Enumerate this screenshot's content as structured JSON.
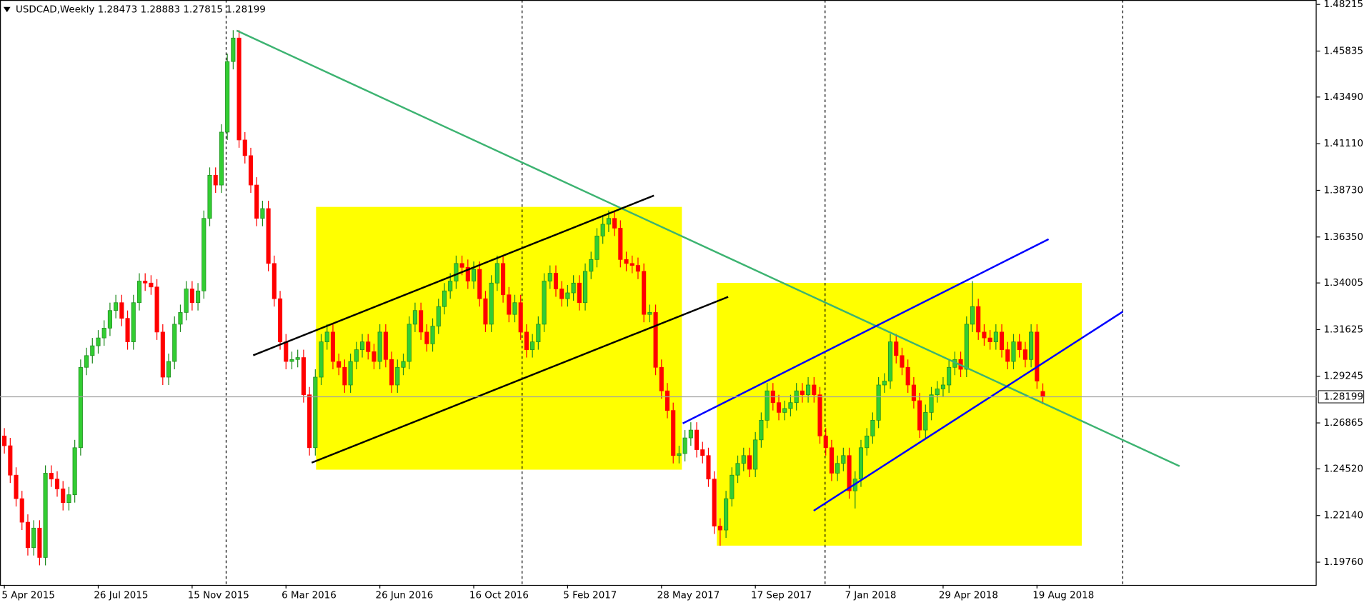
{
  "chart_data": {
    "type": "candlestick",
    "title": "USDCAD,Weekly",
    "up_color": "#32cd32",
    "down_color": "#ff0000",
    "grid": false,
    "ylim": [
      1.186,
      1.4844
    ],
    "yticks": [
      1.48215,
      1.45835,
      {
        "value": 1.4349,
        "label": "1.43490"
      },
      {
        "value": 1.4111,
        "label": "1.41110"
      },
      {
        "value": 1.3873,
        "label": "1.38730"
      },
      {
        "value": 1.3635,
        "label": "1.36350"
      },
      1.34005,
      1.31625,
      1.29245,
      1.26865,
      {
        "value": 1.2452,
        "label": "1.24520"
      },
      {
        "value": 1.2214,
        "label": "1.22140"
      },
      {
        "value": 1.1976,
        "label": "1.19760"
      }
    ],
    "categories": [
      "5 Apr 2015",
      null,
      null,
      null,
      null,
      null,
      null,
      null,
      null,
      null,
      null,
      null,
      null,
      null,
      null,
      null,
      "26 Jul 2015",
      null,
      null,
      null,
      null,
      null,
      null,
      null,
      null,
      null,
      null,
      null,
      null,
      null,
      null,
      null,
      "15 Nov 2015",
      null,
      null,
      null,
      null,
      null,
      null,
      null,
      null,
      null,
      null,
      null,
      null,
      null,
      null,
      null,
      "6 Mar 2016",
      null,
      null,
      null,
      null,
      null,
      null,
      null,
      null,
      null,
      null,
      null,
      null,
      null,
      null,
      null,
      "26 Jun 2016",
      null,
      null,
      null,
      null,
      null,
      null,
      null,
      null,
      null,
      null,
      null,
      null,
      null,
      null,
      null,
      "16 Oct 2016",
      null,
      null,
      null,
      null,
      null,
      null,
      null,
      null,
      null,
      null,
      null,
      null,
      null,
      null,
      null,
      "5 Feb 2017",
      null,
      null,
      null,
      null,
      null,
      null,
      null,
      null,
      null,
      null,
      null,
      null,
      null,
      null,
      null,
      "28 May 2017",
      null,
      null,
      null,
      null,
      null,
      null,
      null,
      null,
      null,
      null,
      null,
      null,
      null,
      null,
      null,
      "17 Sep 2017",
      null,
      null,
      null,
      null,
      null,
      null,
      null,
      null,
      null,
      null,
      null,
      null,
      null,
      null,
      null,
      "7 Jan 2018",
      null,
      null,
      null,
      null,
      null,
      null,
      null,
      null,
      null,
      null,
      null,
      null,
      null,
      null,
      null,
      "29 Apr 2018",
      null,
      null,
      null,
      null,
      null,
      null,
      null,
      null,
      null,
      null,
      null,
      null,
      null,
      null,
      null,
      "19 Aug 2018",
      null
    ],
    "ohlc": [
      [
        1.262,
        1.266,
        1.253,
        1.257
      ],
      [
        1.257,
        1.261,
        1.238,
        1.242
      ],
      [
        1.242,
        1.246,
        1.226,
        1.23
      ],
      [
        1.23,
        1.234,
        1.214,
        1.218
      ],
      [
        1.218,
        1.222,
        1.201,
        1.205
      ],
      [
        1.205,
        1.219,
        1.201,
        1.215
      ],
      [
        1.215,
        1.219,
        1.196,
        1.2
      ],
      [
        1.2,
        1.247,
        1.196,
        1.243
      ],
      [
        1.243,
        1.247,
        1.236,
        1.24
      ],
      [
        1.24,
        1.244,
        1.231,
        1.235
      ],
      [
        1.235,
        1.239,
        1.224,
        1.228
      ],
      [
        1.228,
        1.236,
        1.224,
        1.232
      ],
      [
        1.232,
        1.26,
        1.228,
        1.256
      ],
      [
        1.256,
        1.301,
        1.252,
        1.297
      ],
      [
        1.297,
        1.307,
        1.293,
        1.303
      ],
      [
        1.303,
        1.312,
        1.299,
        1.308
      ],
      [
        1.308,
        1.316,
        1.304,
        1.312
      ],
      [
        1.312,
        1.321,
        1.308,
        1.317
      ],
      [
        1.317,
        1.33,
        1.313,
        1.326
      ],
      [
        1.326,
        1.334,
        1.322,
        1.33
      ],
      [
        1.33,
        1.334,
        1.318,
        1.322
      ],
      [
        1.322,
        1.326,
        1.306,
        1.31
      ],
      [
        1.31,
        1.334,
        1.306,
        1.33
      ],
      [
        1.33,
        1.345,
        1.326,
        1.341
      ],
      [
        1.341,
        1.345,
        1.336,
        1.34
      ],
      [
        1.34,
        1.344,
        1.334,
        1.338
      ],
      [
        1.338,
        1.342,
        1.311,
        1.315
      ],
      [
        1.315,
        1.319,
        1.288,
        1.292
      ],
      [
        1.292,
        1.304,
        1.288,
        1.3
      ],
      [
        1.3,
        1.323,
        1.296,
        1.319
      ],
      [
        1.319,
        1.329,
        1.315,
        1.325
      ],
      [
        1.325,
        1.341,
        1.321,
        1.337
      ],
      [
        1.337,
        1.341,
        1.326,
        1.33
      ],
      [
        1.33,
        1.34,
        1.326,
        1.336
      ],
      [
        1.336,
        1.377,
        1.332,
        1.373
      ],
      [
        1.373,
        1.399,
        1.369,
        1.395
      ],
      [
        1.395,
        1.399,
        1.386,
        1.39
      ],
      [
        1.39,
        1.421,
        1.386,
        1.417
      ],
      [
        1.417,
        1.457,
        1.413,
        1.453
      ],
      [
        1.453,
        1.469,
        1.449,
        1.465
      ],
      [
        1.465,
        1.469,
        1.409,
        1.413
      ],
      [
        1.413,
        1.417,
        1.401,
        1.405
      ],
      [
        1.405,
        1.409,
        1.386,
        1.39
      ],
      [
        1.39,
        1.394,
        1.369,
        1.373
      ],
      [
        1.373,
        1.382,
        1.369,
        1.378
      ],
      [
        1.378,
        1.382,
        1.346,
        1.35
      ],
      [
        1.35,
        1.354,
        1.328,
        1.332
      ],
      [
        1.332,
        1.336,
        1.306,
        1.31
      ],
      [
        1.31,
        1.314,
        1.296,
        1.3
      ],
      [
        1.3,
        1.305,
        1.296,
        1.301
      ],
      [
        1.301,
        1.306,
        1.297,
        1.302
      ],
      [
        1.302,
        1.306,
        1.279,
        1.283
      ],
      [
        1.283,
        1.287,
        1.252,
        1.256
      ],
      [
        1.256,
        1.296,
        1.252,
        1.292
      ],
      [
        1.292,
        1.314,
        1.288,
        1.31
      ],
      [
        1.31,
        1.319,
        1.306,
        1.315
      ],
      [
        1.315,
        1.319,
        1.296,
        1.3
      ],
      [
        1.3,
        1.304,
        1.293,
        1.297
      ],
      [
        1.297,
        1.301,
        1.284,
        1.288
      ],
      [
        1.288,
        1.304,
        1.284,
        1.3
      ],
      [
        1.3,
        1.31,
        1.296,
        1.306
      ],
      [
        1.306,
        1.314,
        1.302,
        1.31
      ],
      [
        1.31,
        1.314,
        1.301,
        1.305
      ],
      [
        1.305,
        1.309,
        1.296,
        1.3
      ],
      [
        1.3,
        1.319,
        1.296,
        1.315
      ],
      [
        1.315,
        1.319,
        1.297,
        1.301
      ],
      [
        1.301,
        1.305,
        1.284,
        1.288
      ],
      [
        1.288,
        1.301,
        1.284,
        1.297
      ],
      [
        1.297,
        1.304,
        1.293,
        1.3
      ],
      [
        1.3,
        1.323,
        1.296,
        1.319
      ],
      [
        1.319,
        1.33,
        1.315,
        1.326
      ],
      [
        1.326,
        1.33,
        1.311,
        1.315
      ],
      [
        1.315,
        1.319,
        1.305,
        1.309
      ],
      [
        1.309,
        1.322,
        1.305,
        1.318
      ],
      [
        1.318,
        1.332,
        1.314,
        1.328
      ],
      [
        1.328,
        1.34,
        1.324,
        1.336
      ],
      [
        1.336,
        1.345,
        1.332,
        1.341
      ],
      [
        1.341,
        1.354,
        1.337,
        1.35
      ],
      [
        1.35,
        1.354,
        1.344,
        1.348
      ],
      [
        1.348,
        1.352,
        1.337,
        1.341
      ],
      [
        1.341,
        1.351,
        1.337,
        1.347
      ],
      [
        1.347,
        1.351,
        1.328,
        1.332
      ],
      [
        1.332,
        1.336,
        1.315,
        1.319
      ],
      [
        1.319,
        1.344,
        1.315,
        1.34
      ],
      [
        1.34,
        1.354,
        1.336,
        1.35
      ],
      [
        1.35,
        1.354,
        1.33,
        1.334
      ],
      [
        1.334,
        1.338,
        1.32,
        1.324
      ],
      [
        1.324,
        1.334,
        1.32,
        1.33
      ],
      [
        1.33,
        1.334,
        1.311,
        1.315
      ],
      [
        1.315,
        1.319,
        1.302,
        1.306
      ],
      [
        1.306,
        1.314,
        1.302,
        1.31
      ],
      [
        1.31,
        1.323,
        1.306,
        1.319
      ],
      [
        1.319,
        1.345,
        1.315,
        1.341
      ],
      [
        1.341,
        1.349,
        1.337,
        1.345
      ],
      [
        1.345,
        1.349,
        1.333,
        1.337
      ],
      [
        1.337,
        1.341,
        1.328,
        1.332
      ],
      [
        1.332,
        1.339,
        1.328,
        1.335
      ],
      [
        1.335,
        1.344,
        1.331,
        1.34
      ],
      [
        1.34,
        1.344,
        1.326,
        1.33
      ],
      [
        1.33,
        1.35,
        1.326,
        1.346
      ],
      [
        1.346,
        1.356,
        1.342,
        1.352
      ],
      [
        1.352,
        1.368,
        1.348,
        1.364
      ],
      [
        1.364,
        1.374,
        1.36,
        1.37
      ],
      [
        1.37,
        1.377,
        1.366,
        1.373
      ],
      [
        1.373,
        1.377,
        1.364,
        1.368
      ],
      [
        1.368,
        1.372,
        1.348,
        1.352
      ],
      [
        1.352,
        1.356,
        1.346,
        1.35
      ],
      [
        1.35,
        1.354,
        1.345,
        1.349
      ],
      [
        1.349,
        1.353,
        1.342,
        1.346
      ],
      [
        1.346,
        1.35,
        1.32,
        1.324
      ],
      [
        1.324,
        1.329,
        1.32,
        1.325
      ],
      [
        1.325,
        1.329,
        1.293,
        1.297
      ],
      [
        1.297,
        1.301,
        1.281,
        1.285
      ],
      [
        1.285,
        1.289,
        1.271,
        1.275
      ],
      [
        1.275,
        1.279,
        1.248,
        1.252
      ],
      [
        1.252,
        1.257,
        1.248,
        1.253
      ],
      [
        1.253,
        1.265,
        1.249,
        1.261
      ],
      [
        1.261,
        1.269,
        1.257,
        1.265
      ],
      [
        1.265,
        1.269,
        1.251,
        1.255
      ],
      [
        1.255,
        1.259,
        1.248,
        1.252
      ],
      [
        1.252,
        1.256,
        1.236,
        1.24
      ],
      [
        1.24,
        1.244,
        1.212,
        1.216
      ],
      [
        1.216,
        1.22,
        1.206,
        1.214
      ],
      [
        1.214,
        1.234,
        1.21,
        1.23
      ],
      [
        1.23,
        1.246,
        1.226,
        1.242
      ],
      [
        1.242,
        1.252,
        1.238,
        1.248
      ],
      [
        1.248,
        1.256,
        1.244,
        1.252
      ],
      [
        1.252,
        1.256,
        1.241,
        1.245
      ],
      [
        1.245,
        1.264,
        1.241,
        1.26
      ],
      [
        1.26,
        1.274,
        1.256,
        1.27
      ],
      [
        1.27,
        1.289,
        1.266,
        1.285
      ],
      [
        1.285,
        1.289,
        1.275,
        1.279
      ],
      [
        1.279,
        1.283,
        1.27,
        1.274
      ],
      [
        1.274,
        1.28,
        1.27,
        1.276
      ],
      [
        1.276,
        1.283,
        1.272,
        1.279
      ],
      [
        1.279,
        1.289,
        1.275,
        1.285
      ],
      [
        1.285,
        1.289,
        1.279,
        1.283
      ],
      [
        1.283,
        1.292,
        1.279,
        1.288
      ],
      [
        1.288,
        1.292,
        1.279,
        1.283
      ],
      [
        1.283,
        1.287,
        1.258,
        1.262
      ],
      [
        1.262,
        1.266,
        1.252,
        1.256
      ],
      [
        1.256,
        1.26,
        1.239,
        1.243
      ],
      [
        1.243,
        1.252,
        1.239,
        1.248
      ],
      [
        1.248,
        1.256,
        1.244,
        1.252
      ],
      [
        1.252,
        1.256,
        1.23,
        1.234
      ],
      [
        1.234,
        1.244,
        1.225,
        1.24
      ],
      [
        1.24,
        1.26,
        1.236,
        1.256
      ],
      [
        1.256,
        1.266,
        1.252,
        1.262
      ],
      [
        1.262,
        1.274,
        1.258,
        1.27
      ],
      [
        1.27,
        1.292,
        1.266,
        1.288
      ],
      [
        1.288,
        1.294,
        1.284,
        1.29
      ],
      [
        1.29,
        1.314,
        1.286,
        1.31
      ],
      [
        1.31,
        1.314,
        1.299,
        1.303
      ],
      [
        1.303,
        1.307,
        1.293,
        1.297
      ],
      [
        1.297,
        1.301,
        1.284,
        1.288
      ],
      [
        1.288,
        1.292,
        1.276,
        1.28
      ],
      [
        1.28,
        1.284,
        1.261,
        1.265
      ],
      [
        1.265,
        1.278,
        1.261,
        1.274
      ],
      [
        1.274,
        1.287,
        1.27,
        1.283
      ],
      [
        1.283,
        1.29,
        1.279,
        1.286
      ],
      [
        1.286,
        1.292,
        1.282,
        1.288
      ],
      [
        1.288,
        1.301,
        1.284,
        1.297
      ],
      [
        1.297,
        1.305,
        1.293,
        1.301
      ],
      [
        1.301,
        1.305,
        1.292,
        1.296
      ],
      [
        1.296,
        1.323,
        1.292,
        1.319
      ],
      [
        1.319,
        1.341,
        1.315,
        1.328
      ],
      [
        1.328,
        1.332,
        1.311,
        1.315
      ],
      [
        1.315,
        1.319,
        1.308,
        1.312
      ],
      [
        1.312,
        1.316,
        1.306,
        1.31
      ],
      [
        1.31,
        1.319,
        1.306,
        1.315
      ],
      [
        1.315,
        1.319,
        1.302,
        1.306
      ],
      [
        1.306,
        1.31,
        1.296,
        1.3
      ],
      [
        1.3,
        1.314,
        1.296,
        1.31
      ],
      [
        1.31,
        1.314,
        1.302,
        1.306
      ],
      [
        1.306,
        1.31,
        1.297,
        1.301
      ],
      [
        1.301,
        1.319,
        1.297,
        1.315
      ],
      [
        1.315,
        1.319,
        1.286,
        1.29
      ],
      [
        1.28473,
        1.28883,
        1.27815,
        1.28199
      ]
    ]
  }
}
